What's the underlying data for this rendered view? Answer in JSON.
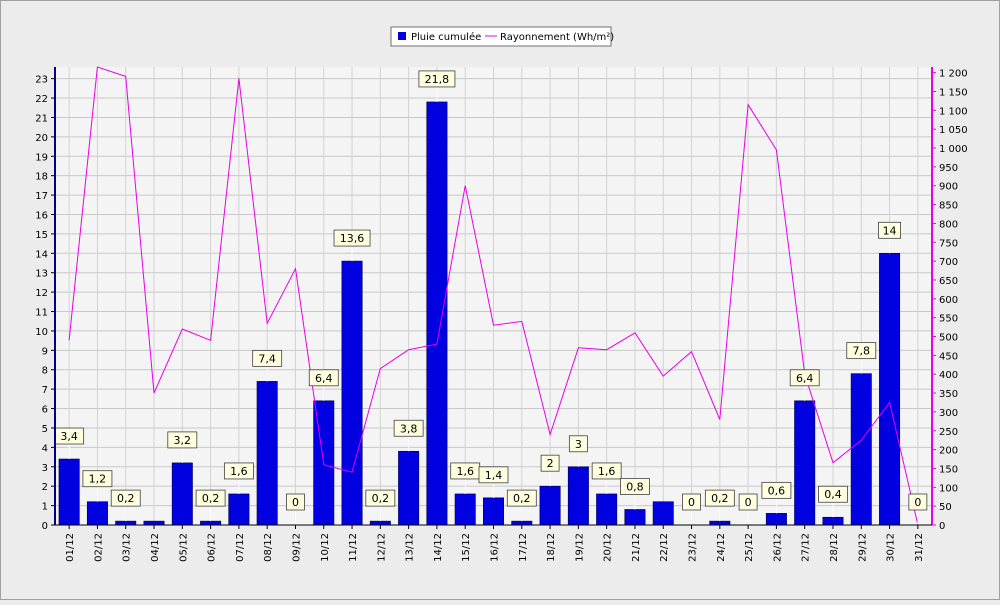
{
  "chart_data": {
    "type": "bar",
    "categories": [
      "01/12",
      "02/12",
      "03/12",
      "04/12",
      "05/12",
      "06/12",
      "07/12",
      "08/12",
      "09/12",
      "10/12",
      "11/12",
      "12/12",
      "13/12",
      "14/12",
      "15/12",
      "16/12",
      "17/12",
      "18/12",
      "19/12",
      "20/12",
      "21/12",
      "22/12",
      "23/12",
      "24/12",
      "25/12",
      "26/12",
      "27/12",
      "28/12",
      "29/12",
      "30/12",
      "31/12"
    ],
    "series": [
      {
        "name": "Pluie cumulée",
        "kind": "bar",
        "axis": "left",
        "color": "#0000e0",
        "values": [
          3.4,
          1.2,
          0.2,
          0.2,
          3.2,
          0.2,
          1.6,
          7.4,
          0,
          6.4,
          13.6,
          0.2,
          3.8,
          21.8,
          1.6,
          1.4,
          0.2,
          2,
          3,
          1.6,
          0.8,
          1.2,
          0,
          0.2,
          0,
          0.6,
          6.4,
          0.4,
          7.8,
          14,
          0
        ]
      },
      {
        "name": "Rayonnement (Wh/m²)",
        "kind": "line",
        "axis": "right",
        "color": "#e800e8",
        "values": [
          490,
          1215,
          1190,
          350,
          520,
          490,
          1185,
          535,
          680,
          160,
          140,
          415,
          465,
          480,
          900,
          530,
          540,
          240,
          470,
          465,
          510,
          395,
          460,
          280,
          1115,
          995,
          400,
          165,
          225,
          325,
          0
        ]
      }
    ],
    "data_labels": [
      "3,4",
      "1,2",
      "0,2",
      "",
      "3,2",
      "0,2",
      "1,6",
      "7,4",
      "0",
      "6,4",
      "13,6",
      "0,2",
      "3,8",
      "21,8",
      "1,6",
      "1,4",
      "0,2",
      "2",
      "3",
      "1,6",
      "0,8",
      "",
      "0",
      "0,2",
      "0",
      "0,6",
      "6,4",
      "0,4",
      "7,8",
      "14",
      "0"
    ],
    "y_left": {
      "ylim": [
        0,
        23.6
      ],
      "ticks": [
        "0",
        "1",
        "2",
        "3",
        "4",
        "5",
        "6",
        "7",
        "8",
        "9",
        "10",
        "11",
        "12",
        "13",
        "14",
        "15",
        "16",
        "17",
        "18",
        "19",
        "20",
        "21",
        "22",
        "23"
      ],
      "color": "#00008b"
    },
    "y_right": {
      "ylim": [
        0,
        1215
      ],
      "ticks": [
        "0",
        "50",
        "100",
        "150",
        "200",
        "250",
        "300",
        "350",
        "400",
        "450",
        "500",
        "550",
        "600",
        "650",
        "700",
        "750",
        "800",
        "850",
        "900",
        "950",
        "1 000",
        "1 050",
        "1 100",
        "1 150",
        "1 200"
      ],
      "color": "#e800e8"
    },
    "grid": true,
    "legend_position": "top-center"
  }
}
